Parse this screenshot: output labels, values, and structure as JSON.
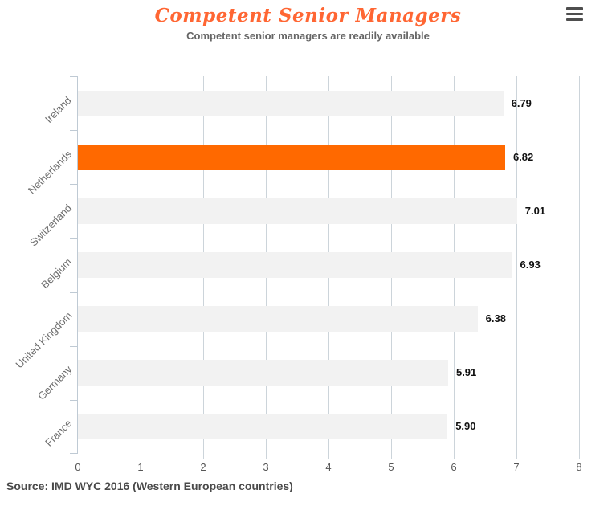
{
  "header": {
    "title": "Competent Senior Managers",
    "subtitle": "Competent senior managers are readily available",
    "menu_icon": "hamburger-icon"
  },
  "footer": {
    "source": "Source: IMD WYC 2016 (Western European countries)"
  },
  "colors": {
    "title_orange": "#ff6633",
    "highlight_orange": "#ff6900",
    "bar_default": "#f2f2f2",
    "axis": "#bfcad4",
    "grid": "#ccd4da",
    "value_label": "#111111",
    "category_label": "#6e6e6e",
    "tick_label": "#555555",
    "subtitle_text": "#666666",
    "source_text": "#4a4a4a",
    "menu_icon": "#4e4e4e"
  },
  "chart_data": {
    "type": "bar",
    "orientation": "horizontal",
    "title": "Competent Senior Managers",
    "subtitle": "Competent senior managers are readily available",
    "categories": [
      "Ireland",
      "Netherlands",
      "Switzerland",
      "Belgium",
      "United Kingdom",
      "Germany",
      "France"
    ],
    "values": [
      6.79,
      6.82,
      7.01,
      6.93,
      6.38,
      5.91,
      5.9
    ],
    "value_labels": [
      "6.79",
      "6.82",
      "7.01",
      "6.93",
      "6.38",
      "5.91",
      "5.90"
    ],
    "highlighted_category": "Netherlands",
    "highlight_index": 1,
    "xlim": [
      0,
      8
    ],
    "x_ticks": [
      0,
      1,
      2,
      3,
      4,
      5,
      6,
      7,
      8
    ],
    "grid": true,
    "legend": "none",
    "source": "Source: IMD WYC 2016 (Western European countries)"
  }
}
